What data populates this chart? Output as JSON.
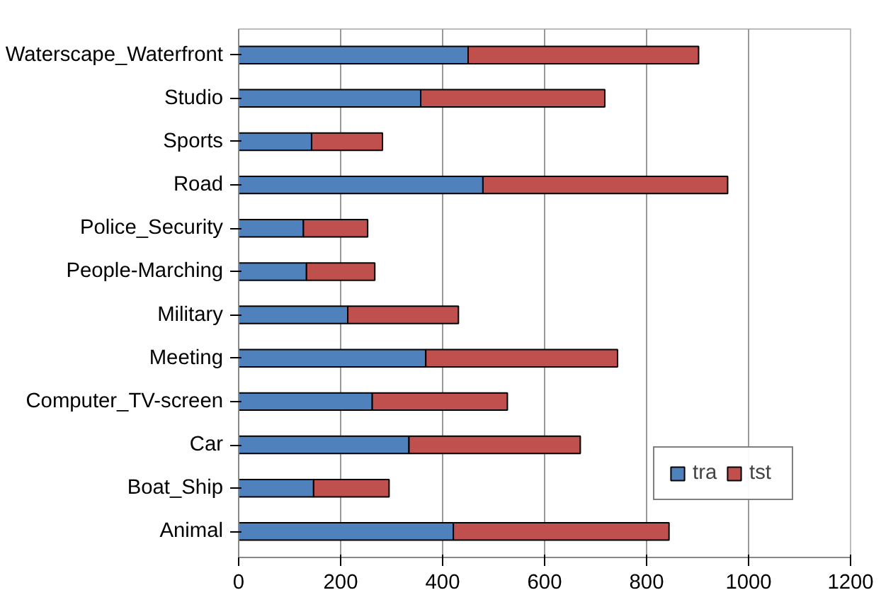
{
  "chart_data": {
    "type": "bar",
    "orientation": "horizontal",
    "stacked": true,
    "categories": [
      "Waterscape_Waterfront",
      "Studio",
      "Sports",
      "Road",
      "Police_Security",
      "People-Marching",
      "Military",
      "Meeting",
      "Computer_TV-screen",
      "Car",
      "Boat_Ship",
      "Animal"
    ],
    "series": [
      {
        "name": "tra",
        "color": "#4f81bd",
        "values": [
          450,
          357,
          143,
          479,
          127,
          133,
          214,
          367,
          262,
          334,
          147,
          421
        ]
      },
      {
        "name": "tst",
        "color": "#c0504d",
        "values": [
          452,
          361,
          139,
          480,
          126,
          134,
          217,
          376,
          265,
          336,
          148,
          423
        ]
      }
    ],
    "xlim": [
      0,
      1200
    ],
    "xticks": [
      0,
      200,
      400,
      600,
      800,
      1000,
      1200
    ],
    "grid": "x",
    "legend": "bottom right"
  }
}
